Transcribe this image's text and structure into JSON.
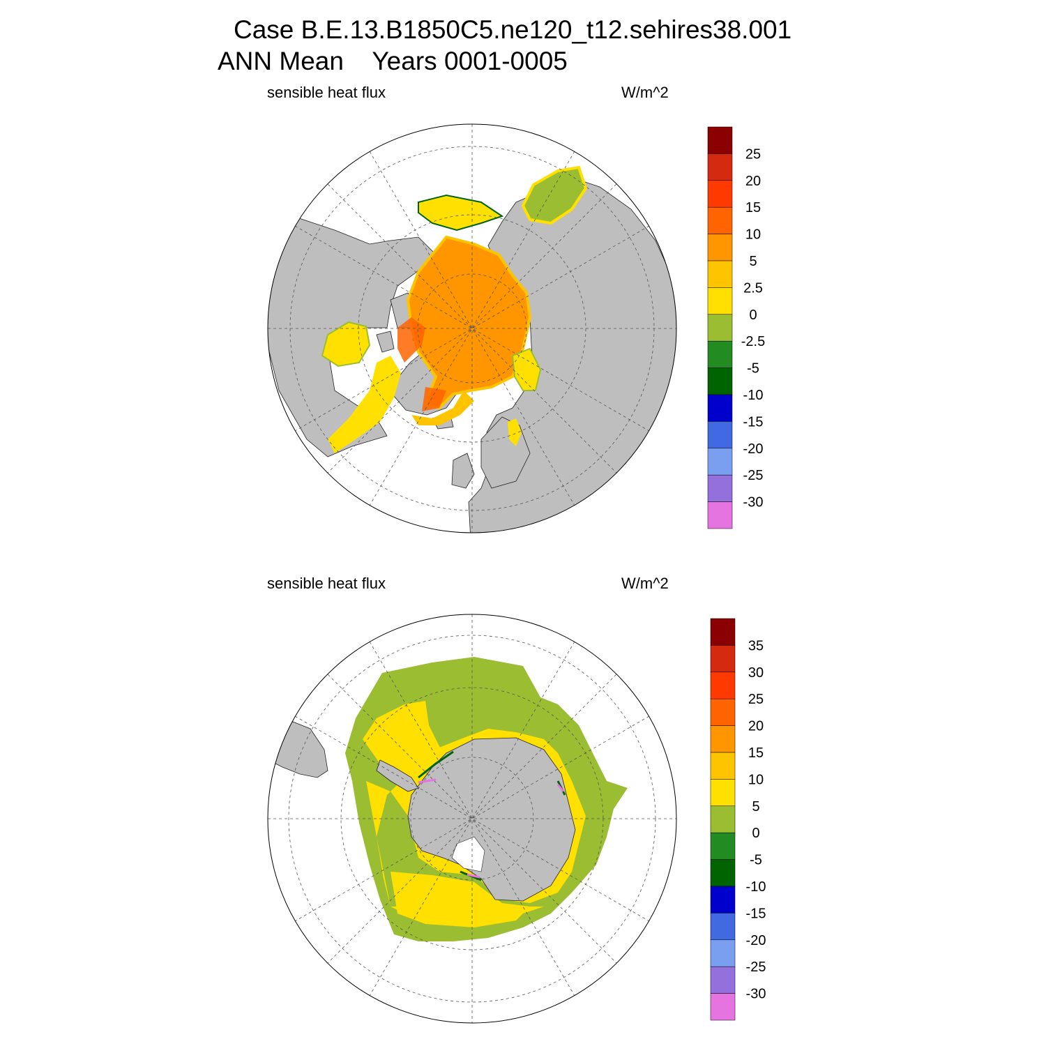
{
  "title": {
    "line1": "Case B.E.13.B1850C5.ne120_t12.sehires38.001",
    "line2": "ANN Mean    Years 0001-0005"
  },
  "colors": {
    "land": "#bebebe",
    "no_data": "#ffffff",
    "grid_line": "#555555"
  },
  "panels": [
    {
      "id": "north",
      "hemisphere": "north",
      "left_string": "sensible heat flux",
      "right_string": "W/m^2",
      "colorbar": {
        "labels": [
          "25",
          "20",
          "15",
          "10",
          "5",
          "2.5",
          "0",
          "-2.5",
          "-5",
          "-10",
          "-15",
          "-20",
          "-25",
          "-30"
        ],
        "colors": [
          "#8b0000",
          "#d42a10",
          "#ff3a00",
          "#ff6400",
          "#ff9600",
          "#ffc400",
          "#ffe000",
          "#9abd32",
          "#228b22",
          "#006400",
          "#0000cd",
          "#4169e1",
          "#7b9ff0",
          "#9370db",
          "#e674e0"
        ]
      }
    },
    {
      "id": "south",
      "hemisphere": "south",
      "left_string": "sensible heat flux",
      "right_string": "W/m^2",
      "colorbar": {
        "labels": [
          "35",
          "30",
          "25",
          "20",
          "15",
          "10",
          "5",
          "0",
          "-5",
          "-10",
          "-15",
          "-20",
          "-25",
          "-30"
        ],
        "colors": [
          "#8b0000",
          "#d42a10",
          "#ff3a00",
          "#ff6400",
          "#ff9600",
          "#ffc400",
          "#ffe000",
          "#9abd32",
          "#228b22",
          "#006400",
          "#0000cd",
          "#4169e1",
          "#7b9ff0",
          "#9370db",
          "#e674e0"
        ]
      }
    }
  ]
}
